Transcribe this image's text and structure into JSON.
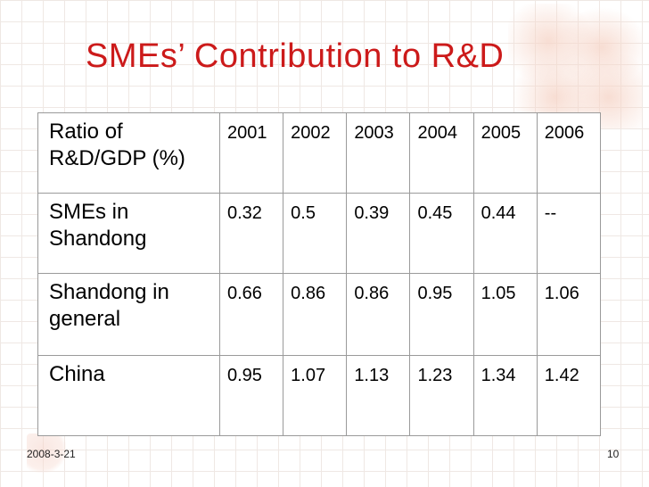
{
  "slide": {
    "title": "SMEs’ Contribution to R&D",
    "date": "2008-3-21",
    "page_number": "10"
  },
  "table": {
    "header": {
      "label": "Ratio of R&D/GDP (%)",
      "years": [
        "2001",
        "2002",
        "2003",
        "2004",
        "2005",
        "2006"
      ]
    },
    "rows": [
      {
        "label": "SMEs in Shandong",
        "values": [
          "0.32",
          "0.5",
          "0.39",
          "0.45",
          "0.44",
          "--"
        ]
      },
      {
        "label": "Shandong in general",
        "values": [
          "0.66",
          "0.86",
          "0.86",
          "0.95",
          "1.05",
          "1.06"
        ]
      },
      {
        "label": "China",
        "values": [
          "0.95",
          "1.07",
          "1.13",
          "1.23",
          "1.34",
          "1.42"
        ]
      }
    ]
  },
  "colors": {
    "title": "#cc1a1a",
    "background_grid": "#efe8e4",
    "seal_decoration": "#f6d5c8",
    "table_border": "#9a9a9a"
  },
  "icons": [
    "seal-decoration-icon"
  ]
}
